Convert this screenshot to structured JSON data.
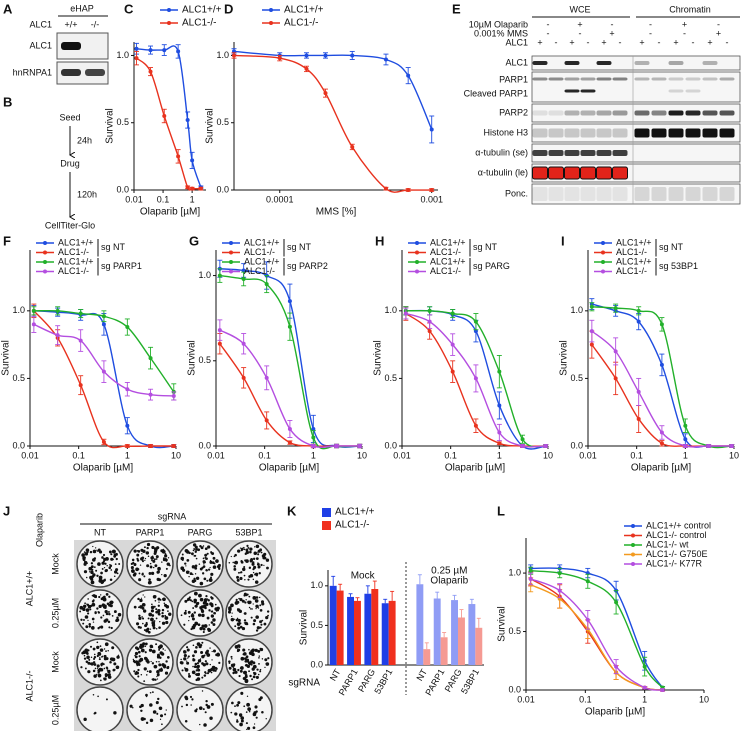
{
  "panel_a": {
    "label": "A",
    "title": "eHAP",
    "row_label": "ALC1",
    "genotypes": [
      "+/+",
      "-/-"
    ],
    "blots": [
      "ALC1",
      "hnRNPA1"
    ]
  },
  "panel_b": {
    "label": "B",
    "steps": [
      "Seed",
      "Drug",
      "CellTiter-Glo"
    ],
    "times": [
      "24h",
      "120h"
    ]
  },
  "panel_e": {
    "label": "E",
    "fractions": [
      "WCE",
      "Chromatin"
    ],
    "conditions": [
      {
        "name": "10µM Olaparib",
        "pairs": [
          "-",
          "+",
          "-",
          "-",
          "+",
          "-"
        ]
      },
      {
        "name": "0.001% MMS",
        "pairs": [
          "-",
          "-",
          "+",
          "-",
          "-",
          "+"
        ]
      },
      {
        "name": "ALC1",
        "lanes": [
          "+",
          "-",
          "+",
          "-",
          "+",
          "-",
          "+",
          "-",
          "+",
          "-",
          "+",
          "-"
        ]
      }
    ],
    "blots": [
      "ALC1",
      "PARP1",
      "Cleaved PARP1",
      "PARP2",
      "Histone H3",
      "α-tubulin (se)",
      "α-tubulin (le)",
      "Ponc."
    ]
  },
  "panel_j": {
    "label": "J",
    "treatment": "Olaparib",
    "header": "sgRNA",
    "columns": [
      "NT",
      "PARP1",
      "PARG",
      "53BP1"
    ],
    "rows": [
      {
        "genotype": "ALC1+/+",
        "conditions": [
          "Mock",
          "0.25µM"
        ]
      },
      {
        "genotype": "ALC1-/-",
        "conditions": [
          "Mock",
          "0.25µM"
        ]
      }
    ]
  },
  "chart_data": [
    {
      "label": "C",
      "type": "line",
      "xscale": "log",
      "ylabel": "Survival",
      "xlabel": "Olaparib [µM]",
      "legend": "top",
      "x": [
        0.0122,
        0.037,
        0.11,
        0.33,
        0.7,
        1,
        2
      ],
      "xlim": [
        0.01,
        3
      ],
      "xticks": [
        0.01,
        0.1,
        1
      ],
      "ylim": [
        0,
        1.1
      ],
      "yticks": [
        {
          "value": 0,
          "label": "0.0"
        },
        {
          "value": 0.5,
          "label": "0.5"
        },
        {
          "value": 1,
          "label": "1.0"
        }
      ],
      "series": [
        {
          "name": "ALC1+/+",
          "color": "#1f4de0",
          "values": [
            1.05,
            1.04,
            1.04,
            1.03,
            0.52,
            0.22,
            0.02
          ],
          "errors": [
            0.04,
            0.03,
            0.04,
            0.05,
            0.06,
            0.06,
            0.01
          ]
        },
        {
          "name": "ALC1-/-",
          "color": "#e8321e",
          "values": [
            0.98,
            0.88,
            0.55,
            0.25,
            0.02,
            0.01,
            0.01
          ],
          "errors": [
            0.05,
            0.03,
            0.05,
            0.05,
            0.01,
            0.01,
            0.01
          ]
        }
      ]
    },
    {
      "label": "D",
      "type": "line",
      "xscale": "log",
      "ylabel": "Survival",
      "xlabel": "MMS [%]",
      "legend": "top",
      "x": [
        5e-05,
        0.0001,
        0.00015,
        0.0002,
        0.0003,
        0.0005,
        0.0007,
        0.001
      ],
      "xlim": [
        5e-05,
        0.0011
      ],
      "xticks": [
        0.0001,
        0.001
      ],
      "ylim": [
        0,
        1.1
      ],
      "yticks": [
        {
          "value": 0,
          "label": "0.0"
        },
        {
          "value": 0.5,
          "label": "0.5"
        },
        {
          "value": 1,
          "label": "1.0"
        }
      ],
      "series": [
        {
          "name": "ALC1+/+",
          "color": "#1f4de0",
          "values": [
            1.03,
            1.0,
            1.0,
            1.0,
            1.0,
            0.97,
            0.85,
            0.45
          ],
          "errors": [
            0.02,
            0.02,
            0.02,
            0.02,
            0.03,
            0.04,
            0.06,
            0.1
          ]
        },
        {
          "name": "ALC1-/-",
          "color": "#e8321e",
          "values": [
            1.0,
            0.98,
            0.9,
            0.72,
            0.32,
            0.01,
            0.0,
            0.0
          ],
          "errors": [
            0.02,
            0.02,
            0.02,
            0.03,
            0.02,
            0.01,
            0.01,
            0.01
          ]
        }
      ]
    },
    {
      "label": "F",
      "type": "line",
      "xscale": "log",
      "ylabel": "Survival",
      "xlabel": "Olaparib [µM]",
      "legend": "top",
      "legend_groups": [
        "sg NT",
        "sg PARP1"
      ],
      "x": [
        0.012,
        0.037,
        0.11,
        0.33,
        1,
        3,
        9
      ],
      "xlim": [
        0.01,
        10
      ],
      "xticks": [
        0.01,
        0.1,
        1,
        10
      ],
      "ylim": [
        0,
        1.45
      ],
      "yticks": [
        {
          "value": 0,
          "label": "0.0"
        },
        {
          "value": 0.5,
          "label": "0.5"
        },
        {
          "value": 1,
          "label": "1.0"
        }
      ],
      "series": [
        {
          "name": "ALC1+/+",
          "color": "#1f4de0",
          "values": [
            1.0,
            0.99,
            0.97,
            0.9,
            0.15,
            0.0,
            0.0
          ],
          "errors": [
            0.04,
            0.03,
            0.04,
            0.08,
            0.06,
            0.01,
            0.01
          ]
        },
        {
          "name": "ALC1-/-",
          "color": "#e8321e",
          "values": [
            1.0,
            0.8,
            0.45,
            0.03,
            0.0,
            0.0,
            0.0
          ],
          "errors": [
            0.05,
            0.06,
            0.07,
            0.02,
            0.01,
            0.01,
            0.01
          ]
        },
        {
          "name": "ALC1+/+",
          "color": "#22b02a",
          "values": [
            1.0,
            1.0,
            0.98,
            0.96,
            0.88,
            0.65,
            0.4
          ],
          "errors": [
            0.03,
            0.03,
            0.03,
            0.04,
            0.06,
            0.08,
            0.06
          ]
        },
        {
          "name": "ALC1-/-",
          "color": "#b44ee0",
          "values": [
            0.9,
            0.82,
            0.78,
            0.55,
            0.42,
            0.38,
            0.37
          ],
          "errors": [
            0.06,
            0.07,
            0.08,
            0.08,
            0.05,
            0.04,
            0.03
          ]
        }
      ]
    },
    {
      "label": "G",
      "type": "line",
      "xscale": "log",
      "ylabel": "Survival",
      "xlabel": "Olaparib [µM]",
      "legend": "top",
      "legend_groups": [
        "sg NT",
        "sg PARP2"
      ],
      "x": [
        0.012,
        0.037,
        0.11,
        0.33,
        1,
        3,
        9
      ],
      "xlim": [
        0.01,
        10
      ],
      "xticks": [
        0.01,
        0.1,
        1,
        10
      ],
      "ylim": [
        0,
        1.15
      ],
      "yticks": [
        {
          "value": 0,
          "label": "0.0"
        },
        {
          "value": 0.5,
          "label": "0.5"
        },
        {
          "value": 1,
          "label": "1.0"
        }
      ],
      "series": [
        {
          "name": "ALC1+/+",
          "color": "#1f4de0",
          "values": [
            1.04,
            1.03,
            1.0,
            0.85,
            0.1,
            0.0,
            0.0
          ],
          "errors": [
            0.05,
            0.04,
            0.08,
            0.1,
            0.08,
            0.01,
            0.01
          ]
        },
        {
          "name": "ALC1-/-",
          "color": "#e8321e",
          "values": [
            0.6,
            0.4,
            0.15,
            0.02,
            0.0,
            0.0,
            0.0
          ],
          "errors": [
            0.06,
            0.06,
            0.05,
            0.01,
            0.01,
            0.01,
            0.01
          ]
        },
        {
          "name": "ALC1+/+",
          "color": "#22b02a",
          "values": [
            1.0,
            0.98,
            0.95,
            0.7,
            0.05,
            0.0,
            0.0
          ],
          "errors": [
            0.04,
            0.04,
            0.05,
            0.08,
            0.04,
            0.01,
            0.01
          ]
        },
        {
          "name": "ALC1-/-",
          "color": "#b44ee0",
          "values": [
            0.68,
            0.6,
            0.4,
            0.1,
            0.0,
            0.0,
            0.0
          ],
          "errors": [
            0.06,
            0.06,
            0.07,
            0.05,
            0.01,
            0.01,
            0.01
          ]
        }
      ]
    },
    {
      "label": "H",
      "type": "line",
      "xscale": "log",
      "ylabel": "Survival",
      "xlabel": "Olaparib [µM]",
      "legend": "top",
      "legend_groups": [
        "sg NT",
        "sg PARG"
      ],
      "x": [
        0.012,
        0.037,
        0.11,
        0.33,
        1,
        3,
        9
      ],
      "xlim": [
        0.01,
        10
      ],
      "xticks": [
        0.01,
        0.1,
        1,
        10
      ],
      "ylim": [
        0,
        1.45
      ],
      "yticks": [
        {
          "value": 0,
          "label": "0.0"
        },
        {
          "value": 0.5,
          "label": "0.5"
        },
        {
          "value": 1,
          "label": "1.0"
        }
      ],
      "series": [
        {
          "name": "ALC1+/+",
          "color": "#1f4de0",
          "values": [
            1.0,
            1.0,
            0.97,
            0.85,
            0.3,
            0.0,
            0.0
          ],
          "errors": [
            0.03,
            0.03,
            0.04,
            0.08,
            0.1,
            0.01,
            0.01
          ]
        },
        {
          "name": "ALC1-/-",
          "color": "#e8321e",
          "values": [
            0.98,
            0.85,
            0.55,
            0.15,
            0.02,
            0.0,
            0.0
          ],
          "errors": [
            0.05,
            0.06,
            0.08,
            0.05,
            0.01,
            0.01,
            0.01
          ]
        },
        {
          "name": "ALC1+/+",
          "color": "#22b02a",
          "values": [
            1.0,
            1.0,
            0.98,
            0.92,
            0.55,
            0.05,
            0.0
          ],
          "errors": [
            0.03,
            0.03,
            0.03,
            0.06,
            0.12,
            0.03,
            0.01
          ]
        },
        {
          "name": "ALC1-/-",
          "color": "#b44ee0",
          "values": [
            0.98,
            0.92,
            0.75,
            0.5,
            0.1,
            0.0,
            0.0
          ],
          "errors": [
            0.04,
            0.05,
            0.08,
            0.1,
            0.06,
            0.01,
            0.01
          ]
        }
      ]
    },
    {
      "label": "I",
      "type": "line",
      "xscale": "log",
      "ylabel": "Survival",
      "xlabel": "Olaparib [µM]",
      "legend": "top",
      "legend_groups": [
        "sg NT",
        "sg 53BP1"
      ],
      "x": [
        0.012,
        0.037,
        0.11,
        0.33,
        1,
        3,
        9
      ],
      "xlim": [
        0.01,
        10
      ],
      "xticks": [
        0.01,
        0.1,
        1,
        10
      ],
      "ylim": [
        0,
        1.45
      ],
      "yticks": [
        {
          "value": 0,
          "label": "0.0"
        },
        {
          "value": 0.5,
          "label": "0.5"
        },
        {
          "value": 1,
          "label": "1.0"
        }
      ],
      "series": [
        {
          "name": "ALC1+/+",
          "color": "#1f4de0",
          "values": [
            1.05,
            1.0,
            0.92,
            0.6,
            0.05,
            0.0,
            0.0
          ],
          "errors": [
            0.04,
            0.04,
            0.06,
            0.08,
            0.04,
            0.01,
            0.01
          ]
        },
        {
          "name": "ALC1-/-",
          "color": "#e8321e",
          "values": [
            0.75,
            0.5,
            0.2,
            0.02,
            0.0,
            0.0,
            0.0
          ],
          "errors": [
            0.1,
            0.12,
            0.1,
            0.02,
            0.01,
            0.01,
            0.01
          ]
        },
        {
          "name": "ALC1+/+",
          "color": "#22b02a",
          "values": [
            1.03,
            1.02,
            1.0,
            0.9,
            0.15,
            0.0,
            0.0
          ],
          "errors": [
            0.03,
            0.03,
            0.03,
            0.05,
            0.05,
            0.01,
            0.01
          ]
        },
        {
          "name": "ALC1-/-",
          "color": "#b44ee0",
          "values": [
            0.85,
            0.7,
            0.4,
            0.1,
            0.0,
            0.0,
            0.0
          ],
          "errors": [
            0.08,
            0.1,
            0.1,
            0.05,
            0.01,
            0.01,
            0.01
          ]
        }
      ]
    },
    {
      "label": "K",
      "type": "bar",
      "ylabel": "Survival",
      "xlabel": "sgRNA",
      "legend": "top",
      "categories": [
        "NT",
        "PARP1",
        "PARG",
        "53BP1",
        "NT",
        "PARP1",
        "PARG",
        "53BP1"
      ],
      "group_labels": [
        [
          "Mock"
        ],
        [
          "0.25 µM",
          "Olaparib"
        ]
      ],
      "ylim": [
        0,
        1.2
      ],
      "yticks": [
        {
          "value": 0,
          "label": "0.0"
        },
        {
          "value": 0.5,
          "label": "0.5"
        },
        {
          "value": 1,
          "label": "1.0"
        }
      ],
      "series": [
        {
          "name": "ALC1+/+",
          "color": "#1f3fe6",
          "colors": [
            "#1f3fe6",
            "#1f3fe6",
            "#1f3fe6",
            "#1f3fe6",
            "#8f9cf5",
            "#8f9cf5",
            "#8f9cf5",
            "#8f9cf5"
          ],
          "values": [
            1.0,
            0.86,
            0.9,
            0.78,
            1.02,
            0.84,
            0.82,
            0.77
          ],
          "errors": [
            0.12,
            0.04,
            0.1,
            0.05,
            0.12,
            0.08,
            0.06,
            0.06
          ]
        },
        {
          "name": "ALC1-/-",
          "color": "#f0301e",
          "colors": [
            "#f0301e",
            "#f0301e",
            "#f0301e",
            "#f0301e",
            "#f59a93",
            "#f59a93",
            "#f59a93",
            "#f59a93"
          ],
          "values": [
            0.94,
            0.81,
            0.96,
            0.81,
            0.2,
            0.35,
            0.6,
            0.47
          ],
          "errors": [
            0.08,
            0.04,
            0.1,
            0.12,
            0.08,
            0.06,
            0.1,
            0.12
          ]
        }
      ]
    },
    {
      "label": "L",
      "type": "line",
      "xscale": "log",
      "ylabel": "Survival",
      "xlabel": "Olaparib [µM]",
      "legend": "top",
      "x": [
        0.012,
        0.037,
        0.11,
        0.33,
        1,
        2
      ],
      "xlim": [
        0.01,
        10
      ],
      "xticks": [
        0.01,
        0.1,
        1,
        10
      ],
      "ylim": [
        0,
        1.3
      ],
      "yticks": [
        {
          "value": 0,
          "label": "0.0"
        },
        {
          "value": 0.5,
          "label": "0.5"
        },
        {
          "value": 1,
          "label": "1.0"
        }
      ],
      "series": [
        {
          "name": "ALC1+/+ control",
          "color": "#1f4de0",
          "values": [
            1.04,
            1.04,
            1.0,
            0.85,
            0.25,
            0.02
          ],
          "errors": [
            0.03,
            0.03,
            0.04,
            0.08,
            0.08,
            0.01
          ]
        },
        {
          "name": "ALC1-/- control",
          "color": "#e8321e",
          "values": [
            0.95,
            0.8,
            0.5,
            0.15,
            0.02,
            0.0
          ],
          "errors": [
            0.06,
            0.1,
            0.1,
            0.06,
            0.01,
            0.01
          ]
        },
        {
          "name": "ALC1-/- wt",
          "color": "#22b02a",
          "values": [
            1.02,
            1.0,
            0.93,
            0.75,
            0.2,
            0.02
          ],
          "errors": [
            0.03,
            0.04,
            0.06,
            0.1,
            0.08,
            0.01
          ]
        },
        {
          "name": "ALC1-/- G750E",
          "color": "#f39a1f",
          "values": [
            0.9,
            0.78,
            0.52,
            0.15,
            0.02,
            0.0
          ],
          "errors": [
            0.06,
            0.08,
            0.08,
            0.06,
            0.01,
            0.01
          ]
        },
        {
          "name": "ALC1-/- K77R",
          "color": "#b44ee0",
          "values": [
            0.95,
            0.85,
            0.6,
            0.2,
            0.02,
            0.0
          ],
          "errors": [
            0.05,
            0.06,
            0.08,
            0.06,
            0.01,
            0.01
          ]
        }
      ]
    }
  ]
}
